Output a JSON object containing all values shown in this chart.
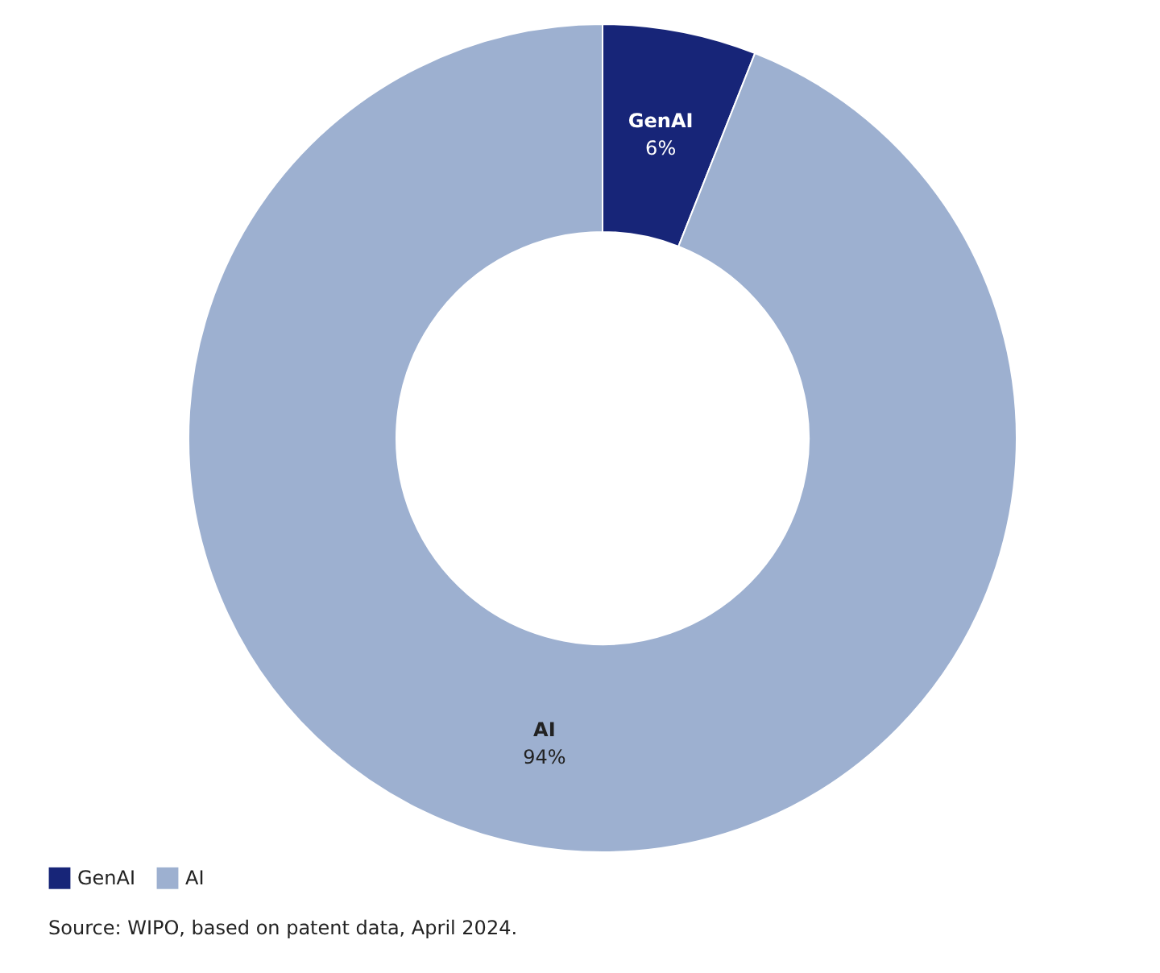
{
  "chart_data": {
    "type": "donut",
    "categories": [
      "GenAI",
      "AI"
    ],
    "values": [
      6,
      94
    ],
    "colors": [
      "#172578",
      "#9db0d0"
    ],
    "value_labels": [
      "6%",
      "94%"
    ],
    "legend": "bottom left",
    "annotations": [
      "Source: WIPO, based on patent data, April 2024."
    ]
  }
}
